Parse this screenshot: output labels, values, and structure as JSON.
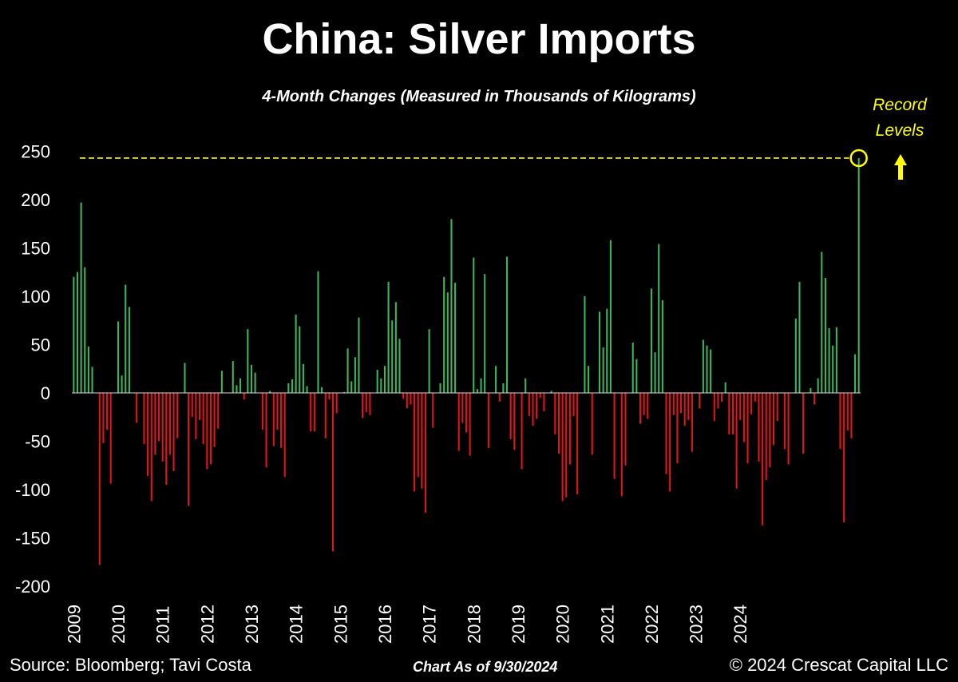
{
  "header": {
    "title": "China: Silver Imports",
    "subtitle": "4-Month Changes (Measured in Thousands of Kilograms)"
  },
  "annotation": {
    "line1": "Record",
    "line2": "Levels",
    "arrow": "up-arrow-icon"
  },
  "footer": {
    "source": "Source: Bloomberg; Tavi Costa",
    "as_of": "Chart As of 9/30/2024",
    "copyright": "© 2024 Crescat Capital LLC"
  },
  "colors": {
    "positive": "#3cb35c",
    "negative": "#e0141b",
    "highlight": "#ffff00",
    "background": "#000000"
  },
  "chart_data": {
    "type": "bar",
    "x_start": "2009-01",
    "x_end": "2024-09",
    "frequency": "monthly",
    "ylim": [
      -200,
      250
    ],
    "yticks": [
      250,
      200,
      150,
      100,
      50,
      0,
      -50,
      -100,
      -150,
      -200
    ],
    "xticks": [
      "2009",
      "2010",
      "2011",
      "2012",
      "2013",
      "2014",
      "2015",
      "2016",
      "2017",
      "2018",
      "2019",
      "2020",
      "2021",
      "2022",
      "2023",
      "2024"
    ],
    "record_level": 243,
    "grid": false,
    "legend": "none",
    "values": [
      120,
      125,
      197,
      130,
      48,
      27,
      0,
      -178,
      -52,
      -38,
      -94,
      0,
      74,
      18,
      112,
      89,
      0,
      -31,
      0,
      -53,
      -86,
      -112,
      -64,
      -50,
      -71,
      -95,
      -64,
      -81,
      -47,
      0,
      31,
      -117,
      -25,
      -48,
      -28,
      -53,
      -79,
      -74,
      -56,
      -37,
      23,
      0,
      0,
      33,
      8,
      15,
      -7,
      66,
      29,
      21,
      0,
      -38,
      -77,
      2,
      -55,
      -38,
      -57,
      -87,
      10,
      14,
      81,
      69,
      30,
      7,
      -40,
      -40,
      126,
      6,
      -47,
      -7,
      -164,
      -21,
      0,
      1,
      46,
      12,
      37,
      78,
      -26,
      -20,
      -23,
      0,
      24,
      15,
      28,
      115,
      75,
      94,
      56,
      -6,
      -16,
      -12,
      -102,
      -87,
      -99,
      -124,
      66,
      -36,
      0,
      10,
      120,
      104,
      180,
      114,
      -60,
      -31,
      -41,
      -65,
      140,
      4,
      15,
      123,
      -57,
      0,
      28,
      -9,
      10,
      141,
      -48,
      -59,
      0,
      -79,
      15,
      -24,
      -34,
      -27,
      -5,
      -19,
      0,
      2,
      -43,
      -63,
      -112,
      -108,
      -74,
      -24,
      -105,
      0,
      100,
      28,
      -64,
      0,
      84,
      47,
      87,
      158,
      -89,
      0,
      -107,
      -75,
      0,
      52,
      35,
      -32,
      -23,
      -27,
      108,
      42,
      154,
      96,
      -84,
      -102,
      -23,
      -73,
      -21,
      -34,
      -28,
      -61,
      0,
      -16,
      55,
      49,
      45,
      -29,
      -16,
      -9,
      11,
      -43,
      -43,
      -99,
      -28,
      -51,
      -73,
      -22,
      -9,
      -71,
      -137,
      -90,
      -77,
      -54,
      -29,
      0,
      -58,
      -74,
      0,
      77,
      115,
      -63,
      0,
      5,
      -12,
      15,
      146,
      119,
      67,
      49,
      68,
      -58,
      -134,
      -39,
      -47,
      40,
      243
    ]
  }
}
